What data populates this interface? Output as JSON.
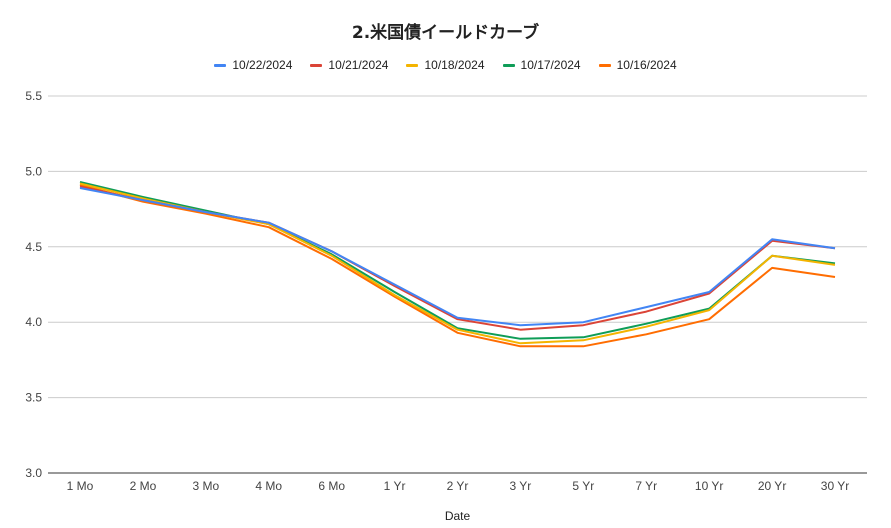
{
  "chart_data": {
    "type": "line",
    "title": "2.米国債イールドカーブ",
    "xlabel": "Date",
    "ylabel": "",
    "ylim": [
      3.0,
      5.5
    ],
    "yticks": [
      "3.0",
      "3.5",
      "4.0",
      "4.5",
      "5.0",
      "5.5"
    ],
    "grid": true,
    "legend_position": "top",
    "categories": [
      "1 Mo",
      "2 Mo",
      "3 Mo",
      "4 Mo",
      "6 Mo",
      "1 Yr",
      "2 Yr",
      "3 Yr",
      "5 Yr",
      "7 Yr",
      "10 Yr",
      "20 Yr",
      "30 Yr"
    ],
    "series": [
      {
        "name": "10/22/2024",
        "color": "#4285f4",
        "values": [
          4.89,
          4.81,
          4.73,
          4.66,
          4.47,
          4.25,
          4.03,
          3.98,
          4.0,
          4.1,
          4.2,
          4.55,
          4.49
        ]
      },
      {
        "name": "10/21/2024",
        "color": "#db4437",
        "values": [
          4.9,
          4.81,
          4.73,
          4.66,
          4.47,
          4.24,
          4.02,
          3.95,
          3.98,
          4.07,
          4.19,
          4.54,
          4.49
        ]
      },
      {
        "name": "10/18/2024",
        "color": "#f4b400",
        "values": [
          4.92,
          4.82,
          4.73,
          4.65,
          4.44,
          4.18,
          3.95,
          3.86,
          3.88,
          3.97,
          4.08,
          4.44,
          4.38
        ]
      },
      {
        "name": "10/17/2024",
        "color": "#0f9d58",
        "values": [
          4.93,
          4.83,
          4.74,
          4.65,
          4.45,
          4.2,
          3.96,
          3.89,
          3.9,
          3.99,
          4.09,
          4.44,
          4.39
        ]
      },
      {
        "name": "10/16/2024",
        "color": "#ff6d01",
        "values": [
          4.91,
          4.8,
          4.72,
          4.63,
          4.42,
          4.17,
          3.93,
          3.84,
          3.84,
          3.92,
          4.02,
          4.36,
          4.3
        ]
      }
    ]
  }
}
